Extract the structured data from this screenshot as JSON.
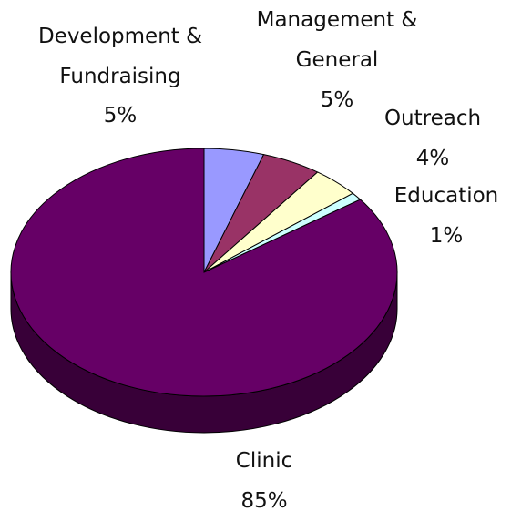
{
  "chart_data": {
    "type": "pie",
    "categories": [
      "Development & Fundraising",
      "Management & General",
      "Outreach",
      "Education",
      "Clinic"
    ],
    "values": [
      5,
      5,
      4,
      1,
      85
    ],
    "value_labels": [
      "5%",
      "5%",
      "4%",
      "1%",
      "85%"
    ],
    "colors": [
      "#9999ff",
      "#993366",
      "#ffffcc",
      "#ccffff",
      "#660066"
    ]
  }
}
